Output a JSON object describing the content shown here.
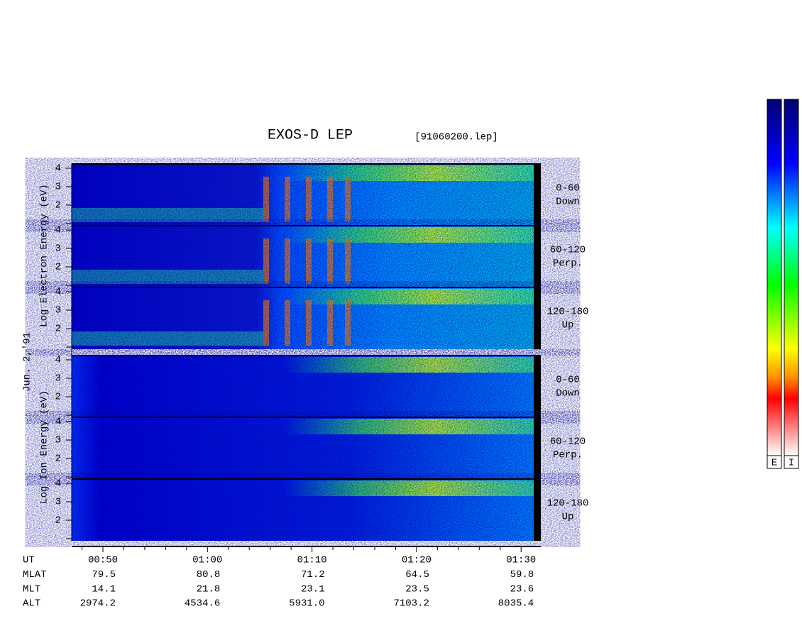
{
  "title": "EXOS-D LEP",
  "file": "[91060200.lep]",
  "date": "Jun. 2,'91",
  "electron_axis_label": "Log  Electron  Energy (eV)",
  "ion_axis_label": "Log  Ion  Energy (eV)",
  "y_tick_labels": [
    "2",
    "3",
    "4"
  ],
  "electron_panels": [
    {
      "label": "0-60",
      "direction": "Down"
    },
    {
      "label": "60-120",
      "direction": "Perp."
    },
    {
      "label": "120-180",
      "direction": "Up"
    }
  ],
  "ion_panels": [
    {
      "label": "0-60",
      "direction": "Down"
    },
    {
      "label": "60-120",
      "direction": "Perp."
    },
    {
      "label": "120-180",
      "direction": "Up"
    }
  ],
  "x_axis_rows": [
    {
      "label": "UT",
      "values": [
        "00:50",
        "01:00",
        "01:10",
        "01:20",
        "01:30"
      ]
    },
    {
      "label": "MLAT",
      "values": [
        "79.5",
        "80.8",
        "71.2",
        "64.5",
        "59.8"
      ]
    },
    {
      "label": "MLT",
      "values": [
        "14.1",
        "21.8",
        "23.1",
        "23.5",
        "23.6"
      ]
    },
    {
      "label": "ALT",
      "values": [
        "2974.2",
        "4534.6",
        "5931.0",
        "7103.2",
        "8035.4"
      ]
    }
  ],
  "colorbar_labels": [
    "E",
    "I"
  ]
}
